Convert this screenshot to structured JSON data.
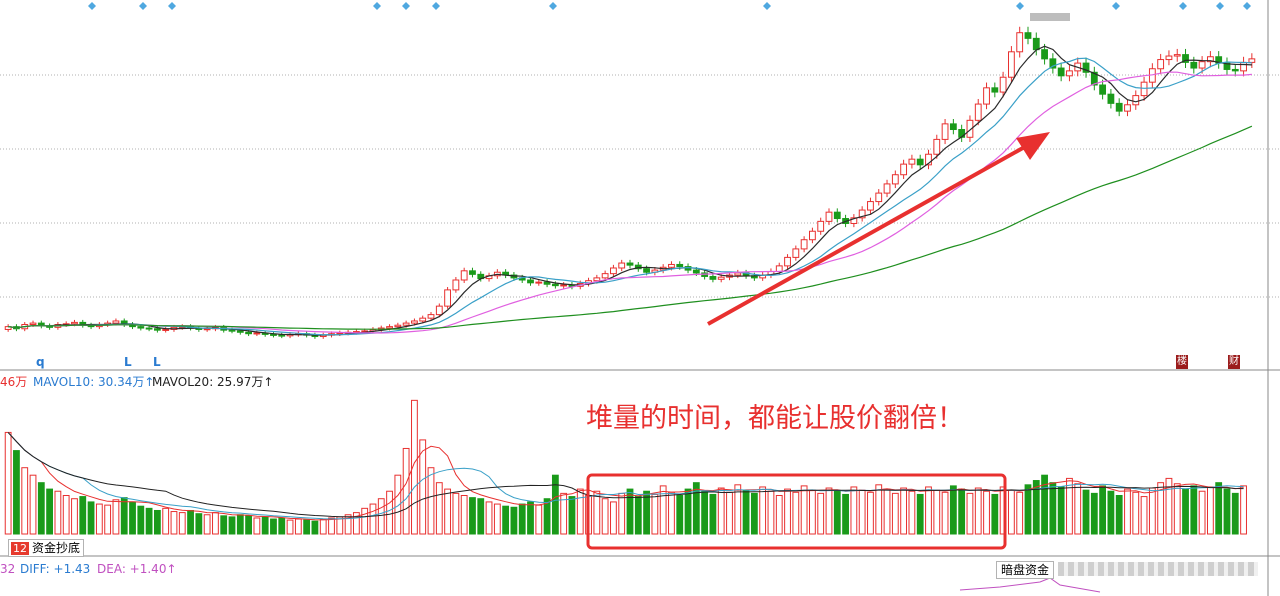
{
  "chart_data": {
    "type": "candlestick",
    "price_series": {
      "open": [
        28.2,
        28.6,
        28.3,
        28.9,
        29.1,
        28.7,
        28.5,
        28.9,
        29.0,
        29.2,
        28.8,
        28.6,
        28.9,
        29.1,
        29.4,
        28.9,
        28.6,
        28.4,
        28.3,
        28.1,
        28.2,
        28.5,
        28.6,
        28.4,
        28.2,
        28.3,
        28.5,
        28.1,
        28.0,
        27.8,
        27.6,
        27.7,
        27.5,
        27.4,
        27.3,
        27.5,
        27.6,
        27.4,
        27.2,
        27.4,
        27.6,
        27.7,
        27.8,
        27.9,
        28.0,
        28.2,
        28.4,
        28.6,
        28.8,
        29.1,
        29.4,
        29.8,
        30.3,
        31.5,
        33.8,
        35.2,
        36.5,
        36.0,
        35.4,
        35.8,
        36.3,
        35.9,
        35.5,
        35.2,
        34.8,
        34.9,
        34.6,
        34.4,
        34.5,
        34.3,
        34.7,
        35.1,
        35.5,
        36.1,
        36.9,
        37.6,
        37.3,
        36.8,
        36.3,
        36.6,
        37.0,
        37.4,
        37.1,
        36.6,
        36.2,
        35.7,
        35.3,
        35.6,
        35.9,
        36.2,
        35.8,
        35.5,
        35.9,
        36.4,
        37.2,
        38.4,
        39.6,
        40.9,
        42.1,
        43.5,
        44.8,
        43.9,
        43.2,
        44.0,
        45.1,
        46.3,
        47.5,
        48.8,
        50.1,
        51.6,
        52.3,
        51.5,
        53.0,
        55.1,
        57.3,
        56.5,
        55.4,
        57.8,
        60.1,
        62.4,
        61.8,
        63.9,
        67.5,
        70.2,
        69.4,
        67.8,
        66.5,
        65.2,
        64.1,
        64.8,
        65.9,
        64.6,
        62.8,
        61.5,
        60.2,
        59.1,
        60.0,
        61.3,
        63.2,
        65.1,
        66.4,
        66.9,
        67.1,
        66.0,
        65.2,
        66.1,
        66.8,
        65.9,
        65.0,
        64.8,
        66.0
      ],
      "close": [
        28.6,
        28.3,
        28.9,
        29.1,
        28.7,
        28.5,
        28.9,
        29.0,
        29.2,
        28.8,
        28.6,
        28.9,
        29.1,
        29.4,
        28.9,
        28.6,
        28.4,
        28.3,
        28.1,
        28.2,
        28.5,
        28.6,
        28.4,
        28.2,
        28.3,
        28.5,
        28.1,
        28.0,
        27.8,
        27.6,
        27.7,
        27.5,
        27.4,
        27.3,
        27.5,
        27.6,
        27.4,
        27.2,
        27.4,
        27.6,
        27.7,
        27.8,
        27.9,
        28.0,
        28.2,
        28.4,
        28.6,
        28.8,
        29.1,
        29.4,
        29.8,
        30.3,
        31.5,
        33.8,
        35.2,
        36.5,
        36.0,
        35.4,
        35.8,
        36.3,
        35.9,
        35.5,
        35.2,
        34.8,
        34.9,
        34.6,
        34.4,
        34.5,
        34.3,
        34.7,
        35.1,
        35.5,
        36.1,
        36.9,
        37.6,
        37.3,
        36.8,
        36.3,
        36.6,
        37.0,
        37.4,
        37.1,
        36.6,
        36.2,
        35.7,
        35.3,
        35.6,
        35.9,
        36.2,
        35.8,
        35.5,
        35.9,
        36.4,
        37.2,
        38.4,
        39.6,
        40.9,
        42.1,
        43.5,
        44.8,
        43.9,
        43.2,
        44.0,
        45.1,
        46.3,
        47.5,
        48.8,
        50.1,
        51.6,
        52.3,
        51.5,
        53.0,
        55.1,
        57.3,
        56.5,
        55.4,
        57.8,
        60.1,
        62.4,
        61.8,
        63.9,
        67.5,
        70.2,
        69.4,
        67.8,
        66.5,
        65.2,
        64.1,
        64.8,
        65.9,
        64.6,
        62.8,
        61.5,
        60.2,
        59.1,
        60.0,
        61.3,
        63.2,
        65.1,
        66.4,
        66.9,
        67.1,
        66.0,
        65.2,
        66.1,
        66.8,
        65.9,
        65.0,
        64.8,
        66.0,
        66.5
      ],
      "y_range": [
        26,
        72
      ],
      "moving_averages": [
        {
          "window": 5,
          "color": "#2a2a2a"
        },
        {
          "window": 10,
          "color": "#3aa0c8"
        },
        {
          "window": 20,
          "color": "#e060e0"
        },
        {
          "window": 60,
          "color": "#1f8f1f"
        }
      ],
      "marker_text": [
        "q",
        "L",
        "L"
      ],
      "corner_tags": [
        "楼",
        "财"
      ],
      "top_marker_color": "#4fa8e0"
    },
    "volume_series": {
      "values": [
        0.95,
        0.78,
        0.62,
        0.55,
        0.48,
        0.42,
        0.4,
        0.36,
        0.33,
        0.35,
        0.3,
        0.28,
        0.27,
        0.32,
        0.34,
        0.3,
        0.26,
        0.24,
        0.22,
        0.24,
        0.21,
        0.2,
        0.22,
        0.19,
        0.18,
        0.2,
        0.17,
        0.16,
        0.18,
        0.17,
        0.15,
        0.16,
        0.14,
        0.15,
        0.13,
        0.14,
        0.13,
        0.12,
        0.14,
        0.15,
        0.16,
        0.18,
        0.2,
        0.24,
        0.28,
        0.33,
        0.4,
        0.55,
        0.8,
        1.25,
        0.88,
        0.62,
        0.48,
        0.42,
        0.38,
        0.36,
        0.34,
        0.33,
        0.3,
        0.28,
        0.26,
        0.25,
        0.28,
        0.3,
        0.27,
        0.33,
        0.55,
        0.38,
        0.35,
        0.42,
        0.36,
        0.4,
        0.33,
        0.3,
        0.38,
        0.42,
        0.35,
        0.4,
        0.37,
        0.45,
        0.39,
        0.36,
        0.42,
        0.48,
        0.4,
        0.37,
        0.43,
        0.39,
        0.46,
        0.41,
        0.38,
        0.44,
        0.4,
        0.36,
        0.42,
        0.39,
        0.45,
        0.41,
        0.38,
        0.43,
        0.4,
        0.37,
        0.44,
        0.41,
        0.39,
        0.46,
        0.42,
        0.38,
        0.43,
        0.4,
        0.37,
        0.44,
        0.41,
        0.39,
        0.45,
        0.42,
        0.38,
        0.43,
        0.4,
        0.37,
        0.44,
        0.41,
        0.39,
        0.46,
        0.5,
        0.55,
        0.48,
        0.44,
        0.52,
        0.47,
        0.41,
        0.38,
        0.45,
        0.4,
        0.36,
        0.42,
        0.39,
        0.35,
        0.43,
        0.48,
        0.52,
        0.47,
        0.42,
        0.45,
        0.4,
        0.44,
        0.48,
        0.42,
        0.38,
        0.45
      ],
      "legend": [
        {
          "text": "46万",
          "color": "#e8302f"
        },
        {
          "text": "MAVOL10: 30.34万↑",
          "color": "#2a7bd0"
        },
        {
          "text": "MAVOL20: 25.97万↑",
          "color": "#222222"
        }
      ]
    },
    "annotation_text": "堆量的时间，都能让股价翻倍！",
    "annotation_color": "#e8302f",
    "bottom_tab": {
      "number": "12",
      "label": "资金抄底"
    },
    "indicator_legend": [
      {
        "text": "32",
        "color": "#c050c0"
      },
      {
        "text": "DIFF: +1.43",
        "color": "#2a7bd0"
      },
      {
        "text": "DEA: +1.40↑",
        "color": "#c050c0"
      }
    ],
    "right_tab": "暗盘资金",
    "colors": {
      "up": "#e8302f",
      "down": "#1a9a1a",
      "grid": "#b0b0b0"
    }
  }
}
